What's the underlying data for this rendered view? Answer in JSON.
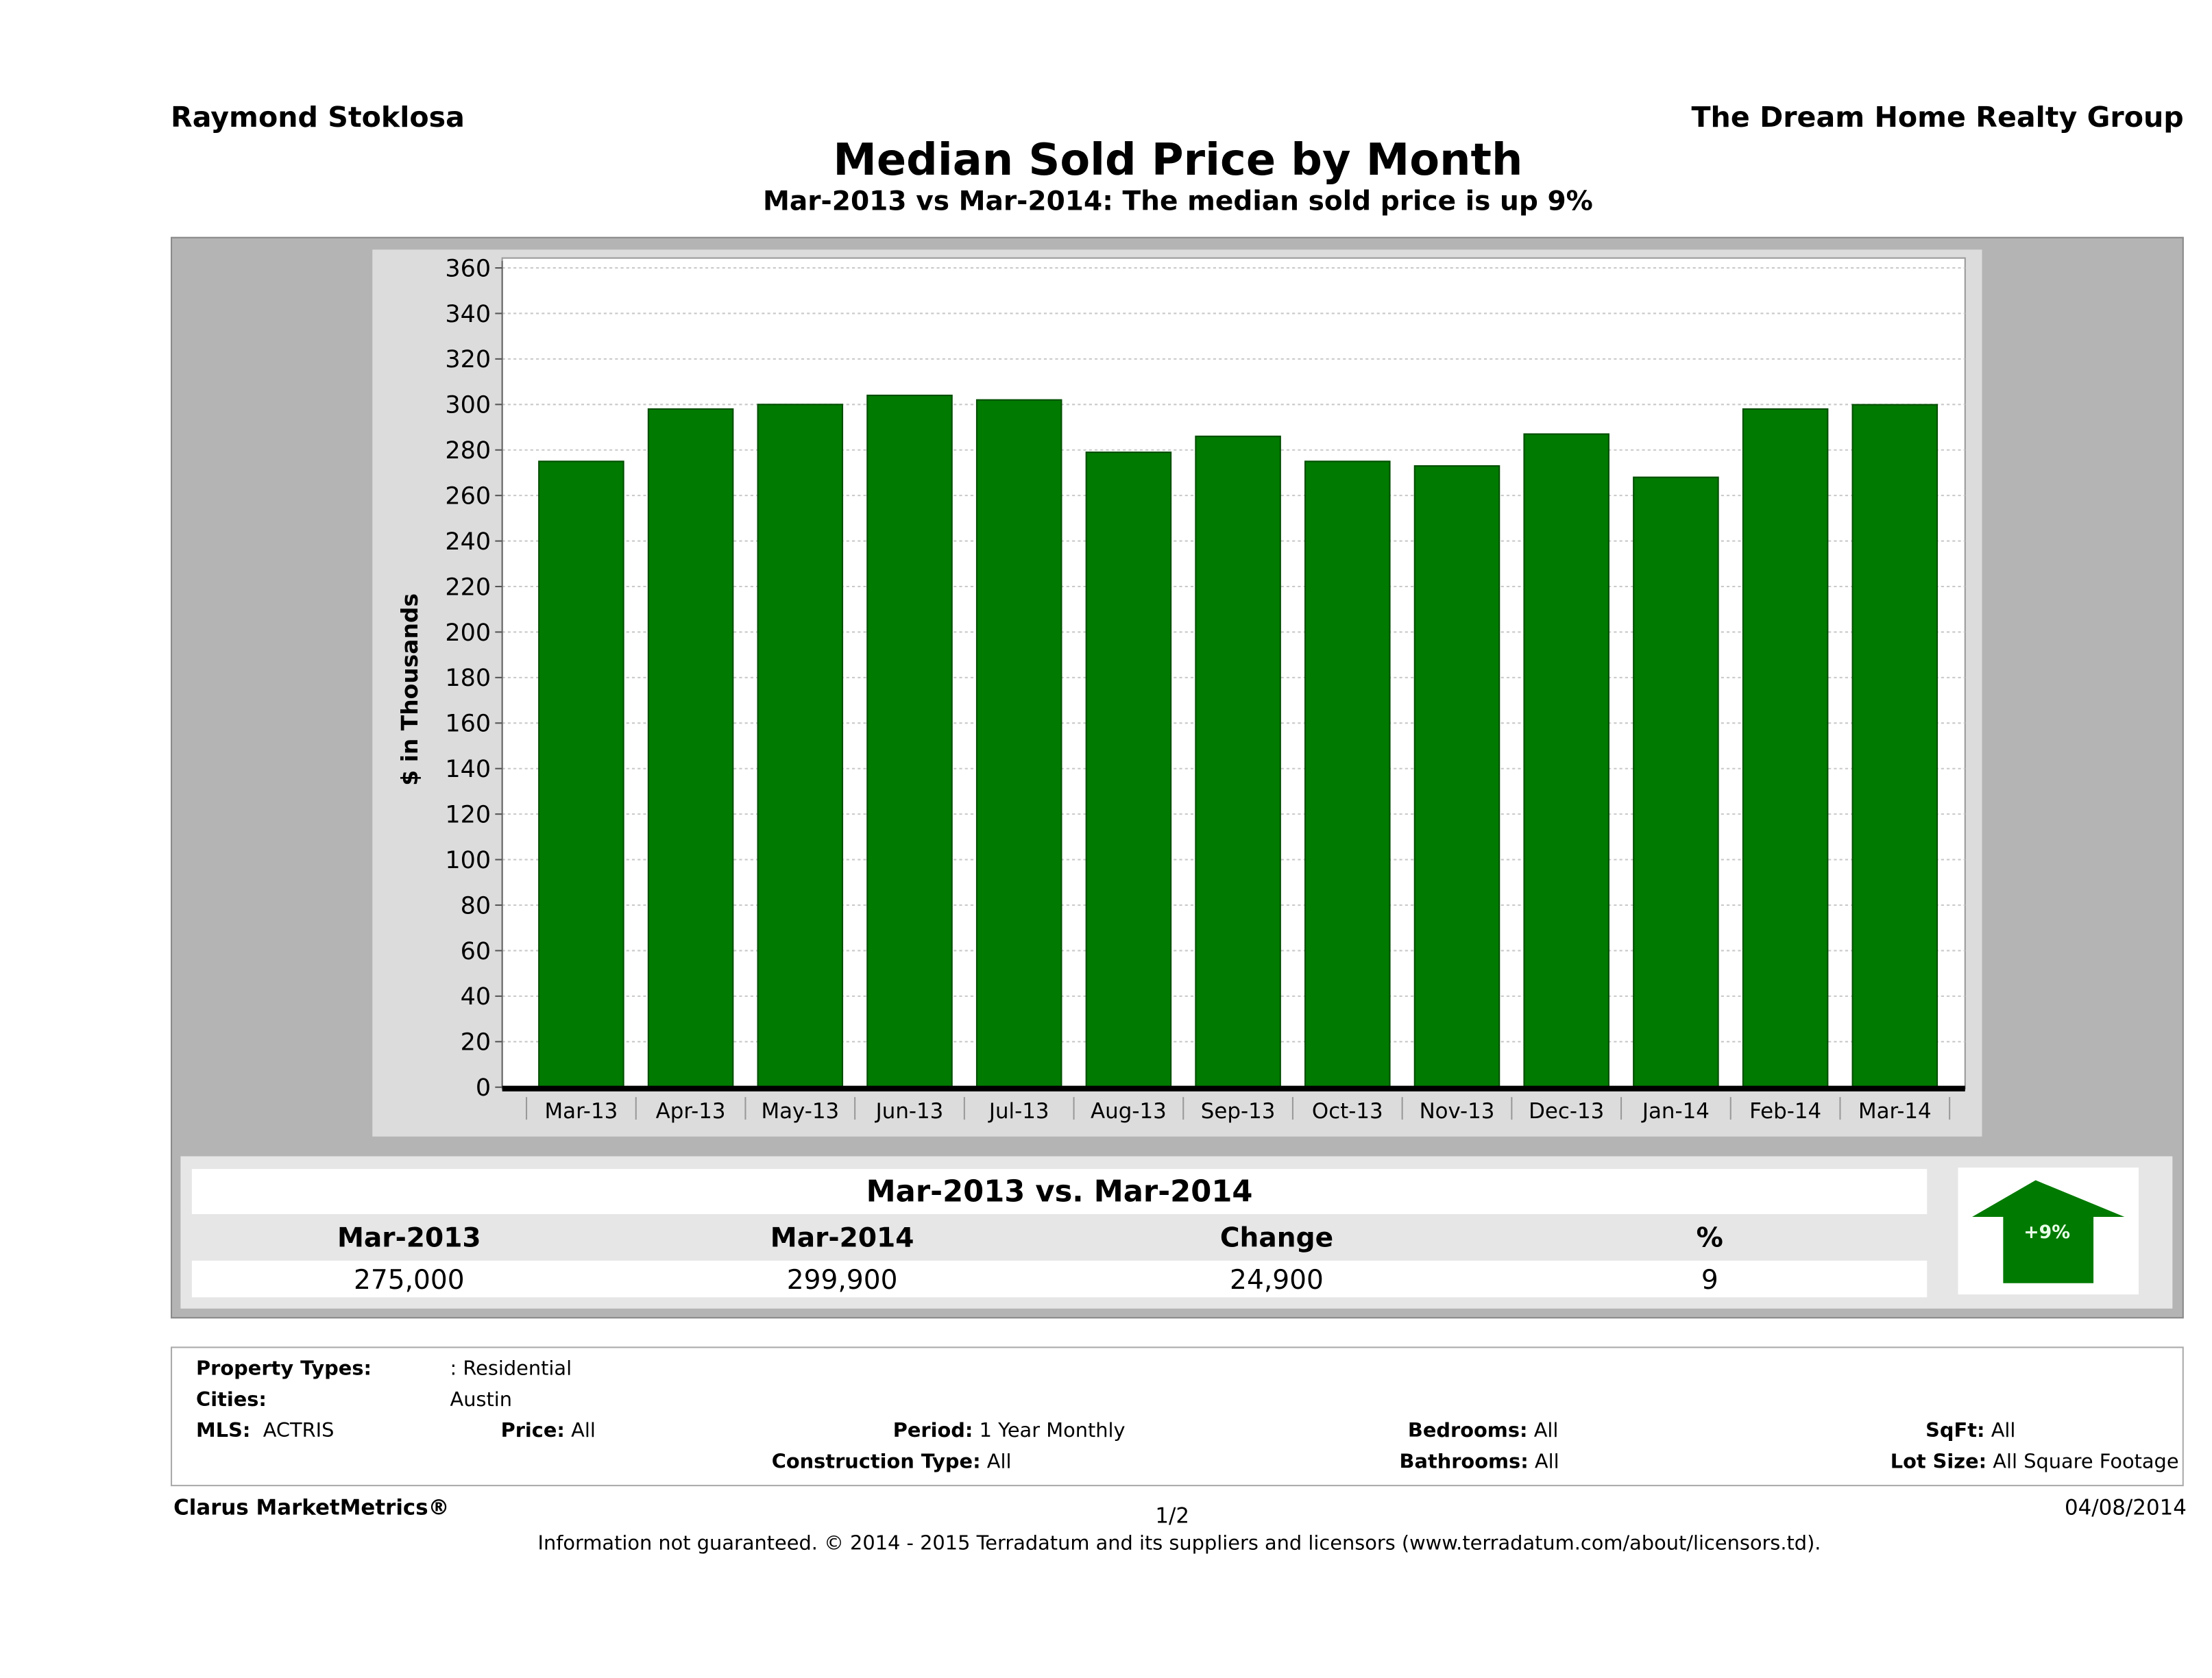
{
  "header": {
    "agent": "Raymond Stoklosa",
    "company": "The Dream Home Realty Group"
  },
  "title": "Median Sold Price by Month",
  "subtitle": "Mar-2013 vs Mar-2014: The median sold price is up 9%",
  "chart_data": {
    "type": "bar",
    "title": "Median Sold Price by Month",
    "ylabel": "$ in Thousands",
    "xlabel": "",
    "ylim": [
      0,
      360
    ],
    "yticks": [
      0,
      20,
      40,
      60,
      80,
      100,
      120,
      140,
      160,
      180,
      200,
      220,
      240,
      260,
      280,
      300,
      320,
      340,
      360
    ],
    "grid": true,
    "categories": [
      "Mar-13",
      "Apr-13",
      "May-13",
      "Jun-13",
      "Jul-13",
      "Aug-13",
      "Sep-13",
      "Oct-13",
      "Nov-13",
      "Dec-13",
      "Jan-14",
      "Feb-14",
      "Mar-14"
    ],
    "values": [
      275,
      298,
      300,
      304,
      302,
      279,
      286,
      275,
      273,
      287,
      268,
      298,
      299.9
    ],
    "bar_color": "#007a00"
  },
  "summary": {
    "heading": "Mar-2013 vs. Mar-2014",
    "columns": [
      "Mar-2013",
      "Mar-2014",
      "Change",
      "%"
    ],
    "values": [
      "275,000",
      "299,900",
      "24,900",
      "9"
    ],
    "badge": "+9%",
    "badge_direction": "up",
    "badge_color": "#007a00"
  },
  "filters": {
    "property_types_label": "Property Types:",
    "property_types": ": Residential",
    "cities_label": "Cities:",
    "cities": "Austin",
    "mls_label": "MLS:",
    "mls": "ACTRIS",
    "price_label": "Price:",
    "price": "All",
    "period_label": "Period:",
    "period": "1 Year Monthly",
    "construction_label": "Construction Type:",
    "construction": "All",
    "bedrooms_label": "Bedrooms:",
    "bedrooms": "All",
    "bathrooms_label": "Bathrooms:",
    "bathrooms": "All",
    "sqft_label": "SqFt:",
    "sqft": "All",
    "lot_label": "Lot Size:",
    "lot": "All Square Footage"
  },
  "footer": {
    "brand": "Clarus MarketMetrics®",
    "page": "1/2",
    "date": "04/08/2014",
    "disclaimer": "Information not guaranteed. © 2014 - 2015 Terradatum and its suppliers and licensors (www.terradatum.com/about/licensors.td)."
  }
}
